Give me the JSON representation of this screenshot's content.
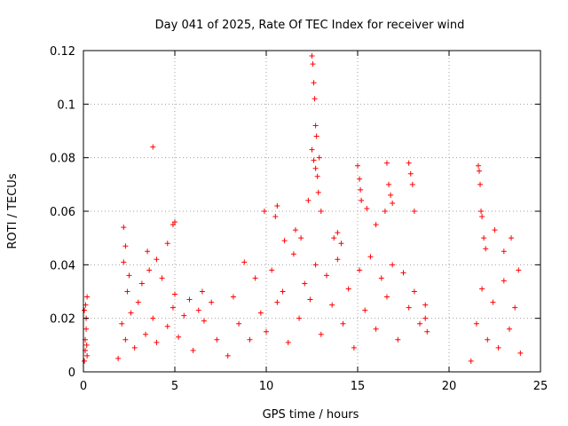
{
  "chart_data": {
    "type": "scatter",
    "title": "Day 041 of 2025, Rate Of TEC Index for receiver wind",
    "xlabel": "GPS time / hours",
    "ylabel": "ROTI / TECUs",
    "xlim": [
      0,
      25
    ],
    "ylim": [
      0,
      0.12
    ],
    "xticks": [
      0,
      5,
      10,
      15,
      20,
      25
    ],
    "yticks": [
      0,
      0.02,
      0.04,
      0.06,
      0.08,
      0.1,
      0.12
    ],
    "xtick_labels": [
      "0",
      "5",
      "10",
      "15",
      "20",
      "25"
    ],
    "ytick_labels": [
      "0",
      "0.02",
      "0.04",
      "0.06",
      "0.08",
      "0.1",
      "0.12"
    ],
    "grid": true,
    "marker": "plus",
    "color": "#ff0000",
    "series": [
      {
        "x": [
          0.05,
          0.1,
          0.15,
          0.2,
          0.1,
          0.15,
          0.05,
          0.2,
          0.12,
          0.18,
          1.9,
          2.1,
          2.2,
          2.3,
          2.4,
          2.6,
          2.8,
          3.0,
          3.2,
          3.4,
          3.6,
          3.8,
          4.0,
          4.3,
          4.6,
          4.9,
          5.0,
          5.2,
          5.5,
          5.8,
          6.0,
          6.3,
          6.6,
          7.0,
          7.3,
          2.2,
          2.3,
          3.5,
          3.8,
          4.6,
          4.9,
          5.0,
          2.5,
          4.0,
          6.5,
          7.9,
          8.2,
          8.5,
          8.8,
          9.1,
          9.4,
          9.7,
          10.0,
          10.3,
          10.6,
          10.9,
          11.2,
          11.5,
          11.8,
          12.1,
          12.4,
          12.7,
          13.0,
          13.3,
          13.6,
          13.9,
          14.2,
          14.5,
          14.8,
          15.1,
          15.4,
          15.7,
          16.0,
          16.3,
          16.6,
          16.9,
          17.2,
          17.5,
          17.8,
          18.1,
          18.4,
          18.7,
          9.9,
          10.5,
          10.6,
          11.0,
          11.6,
          11.9,
          12.3,
          12.5,
          12.55,
          12.6,
          12.65,
          12.7,
          12.75,
          12.5,
          12.6,
          12.7,
          12.8,
          12.85,
          12.9,
          13.0,
          13.7,
          13.9,
          14.1,
          15.0,
          15.1,
          15.15,
          15.2,
          15.5,
          16.0,
          16.5,
          16.6,
          16.7,
          16.8,
          16.9,
          17.8,
          17.9,
          18.0,
          18.1,
          18.7,
          18.8,
          21.2,
          21.5,
          21.8,
          22.1,
          22.4,
          22.7,
          23.0,
          23.3,
          23.6,
          23.9,
          21.6,
          21.65,
          21.7,
          21.75,
          21.8,
          21.9,
          22.0,
          22.5,
          23.0,
          23.4,
          23.8
        ],
        "y": [
          0.004,
          0.012,
          0.02,
          0.028,
          0.008,
          0.016,
          0.023,
          0.006,
          0.025,
          0.01,
          0.005,
          0.018,
          0.041,
          0.012,
          0.03,
          0.022,
          0.009,
          0.026,
          0.033,
          0.014,
          0.038,
          0.02,
          0.011,
          0.035,
          0.017,
          0.024,
          0.029,
          0.013,
          0.021,
          0.027,
          0.008,
          0.023,
          0.019,
          0.026,
          0.012,
          0.054,
          0.047,
          0.045,
          0.084,
          0.048,
          0.055,
          0.056,
          0.036,
          0.042,
          0.03,
          0.006,
          0.028,
          0.018,
          0.041,
          0.012,
          0.035,
          0.022,
          0.015,
          0.038,
          0.026,
          0.03,
          0.011,
          0.044,
          0.02,
          0.033,
          0.027,
          0.04,
          0.014,
          0.036,
          0.025,
          0.042,
          0.018,
          0.031,
          0.009,
          0.038,
          0.023,
          0.043,
          0.016,
          0.035,
          0.028,
          0.04,
          0.012,
          0.037,
          0.024,
          0.03,
          0.018,
          0.025,
          0.06,
          0.058,
          0.062,
          0.049,
          0.053,
          0.05,
          0.064,
          0.118,
          0.115,
          0.108,
          0.102,
          0.092,
          0.088,
          0.083,
          0.079,
          0.076,
          0.073,
          0.067,
          0.08,
          0.06,
          0.05,
          0.052,
          0.048,
          0.077,
          0.072,
          0.068,
          0.064,
          0.061,
          0.055,
          0.06,
          0.078,
          0.07,
          0.066,
          0.063,
          0.078,
          0.074,
          0.07,
          0.06,
          0.02,
          0.015,
          0.004,
          0.018,
          0.031,
          0.012,
          0.026,
          0.009,
          0.034,
          0.016,
          0.024,
          0.007,
          0.077,
          0.075,
          0.07,
          0.06,
          0.058,
          0.05,
          0.046,
          0.053,
          0.045,
          0.05,
          0.038
        ]
      }
    ]
  }
}
